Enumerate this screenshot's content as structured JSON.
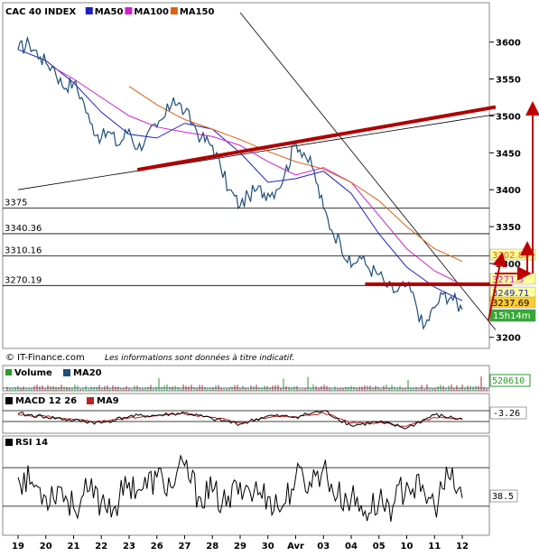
{
  "instrument": "CAC 40 INDEX",
  "credit": "© IT-Finance.com",
  "disclaimer": "Les informations sont données à titre indicatif.",
  "colors": {
    "price": "#1f4e79",
    "ma50": "#2020c8",
    "ma100": "#d020d0",
    "ma150": "#e06010",
    "trend": "#b00000",
    "volume_up": "#2a9a2a",
    "volume_down": "#c02020",
    "ma20": "#1f4e79",
    "macd": "#000000",
    "signal": "#c02020",
    "rsi": "#000000",
    "label_fill": "#ffff99",
    "price_label_fill": "#ffcc33",
    "time_label_fill": "#33aa33"
  },
  "chart_data": [
    {
      "type": "line",
      "title": "CAC 40 INDEX",
      "ylim": [
        3185,
        3635
      ],
      "y_ticks": [
        3600,
        3550,
        3500,
        3450,
        3400,
        3350,
        3300,
        3250,
        3200
      ],
      "x_ticks": [
        "19",
        "20",
        "21",
        "22",
        "23",
        "26",
        "27",
        "28",
        "29",
        "30",
        "Avr",
        "03",
        "04",
        "05",
        "10",
        "11",
        "12"
      ],
      "legend": [
        {
          "name": "CAC 40 INDEX",
          "color": "#000000"
        },
        {
          "name": "MA50",
          "color": "#2020c8"
        },
        {
          "name": "MA100",
          "color": "#d020d0"
        },
        {
          "name": "MA150",
          "color": "#e06010"
        }
      ],
      "horizontal_levels": [
        {
          "label": "3375",
          "value": 3375
        },
        {
          "label": "3340.36",
          "value": 3340.36
        },
        {
          "label": "3310.16",
          "value": 3310.16
        },
        {
          "label": "3270.19",
          "value": 3270.19
        }
      ],
      "price_labels": [
        {
          "label": "3302.88",
          "value": 3302.88,
          "color": "#e06010"
        },
        {
          "label": "3271.3",
          "value": 3271.3,
          "color": "#d020d0"
        },
        {
          "label": "3249.71",
          "value": 3249.71,
          "color": "#2020c8"
        },
        {
          "label": "3237.69",
          "value": 3237.69,
          "color": "#000000"
        }
      ],
      "time_label": "15h14m",
      "series": [
        {
          "name": "CAC 40 INDEX",
          "x": [
            0,
            0.4,
            0.8,
            1.0,
            1.3,
            1.6,
            2.0,
            2.3,
            2.6,
            3.0,
            3.3,
            3.6,
            4.0,
            4.3,
            4.6,
            5.0,
            5.3,
            5.6,
            6.0,
            6.3,
            6.6,
            7.0,
            7.3,
            7.6,
            8.0,
            8.3,
            8.6,
            9.0,
            9.3,
            9.6,
            10.0,
            10.3,
            10.6,
            11.0,
            11.3,
            11.6,
            12.0,
            12.3,
            12.6,
            13.0,
            13.3,
            13.6,
            14.0,
            14.3,
            14.6,
            15.0,
            15.3,
            15.6,
            16.0
          ],
          "values": [
            3590,
            3598,
            3580,
            3572,
            3565,
            3540,
            3545,
            3525,
            3490,
            3470,
            3478,
            3460,
            3482,
            3455,
            3470,
            3485,
            3500,
            3525,
            3505,
            3490,
            3470,
            3460,
            3430,
            3400,
            3378,
            3392,
            3400,
            3395,
            3400,
            3420,
            3465,
            3450,
            3430,
            3375,
            3345,
            3330,
            3295,
            3310,
            3295,
            3285,
            3268,
            3262,
            3270,
            3250,
            3212,
            3240,
            3258,
            3255,
            3237.69
          ]
        },
        {
          "name": "MA50",
          "x": [
            0,
            1.0,
            2.0,
            3.0,
            4.0,
            5.0,
            6.0,
            7.0,
            8.0,
            9.0,
            10.0,
            11.0,
            12.0,
            13.0,
            14.0,
            15.0,
            16.0
          ],
          "values": [
            3590,
            3575,
            3545,
            3505,
            3475,
            3470,
            3490,
            3482,
            3450,
            3410,
            3415,
            3425,
            3395,
            3340,
            3295,
            3268,
            3249.71
          ]
        },
        {
          "name": "MA100",
          "x": [
            1.3,
            2.0,
            3.0,
            4.0,
            5.0,
            6.0,
            7.0,
            8.0,
            9.0,
            10.0,
            11.0,
            12.0,
            13.0,
            14.0,
            15.0,
            16.0
          ],
          "values": [
            3565,
            3550,
            3525,
            3500,
            3485,
            3478,
            3472,
            3460,
            3438,
            3420,
            3430,
            3410,
            3365,
            3320,
            3290,
            3271.3
          ]
        },
        {
          "name": "MA150",
          "x": [
            4.0,
            5.0,
            6.0,
            7.0,
            8.0,
            9.0,
            10.0,
            11.0,
            12.0,
            13.0,
            14.0,
            15.0,
            16.0
          ],
          "values": [
            3540,
            3515,
            3495,
            3482,
            3468,
            3452,
            3438,
            3428,
            3410,
            3385,
            3350,
            3320,
            3302.88
          ]
        }
      ],
      "annotations": [
        {
          "type": "trendline",
          "style": "thin",
          "x": [
            8.0,
            17.2
          ],
          "values": [
            3640,
            3210
          ]
        },
        {
          "type": "trendline",
          "style": "thin",
          "x": [
            0,
            17.2
          ],
          "values": [
            3400,
            3502
          ]
        },
        {
          "type": "trendline",
          "style": "thick",
          "x": [
            4.3,
            17.2
          ],
          "values": [
            3427,
            3512
          ]
        },
        {
          "type": "trendline",
          "style": "thick",
          "x": [
            12.5,
            17.8
          ],
          "values": [
            3272,
            3272
          ]
        }
      ]
    },
    {
      "type": "bar",
      "legend": [
        {
          "name": "Volume",
          "color": "#2a9a2a"
        },
        {
          "name": "MA20",
          "color": "#1f4e79"
        }
      ],
      "last_value_label": "520610"
    },
    {
      "type": "line",
      "legend": [
        {
          "name": "MACD 12 26",
          "color": "#000000"
        },
        {
          "name": "MA9",
          "color": "#c02020"
        }
      ],
      "ylim": [
        -30,
        30
      ],
      "series": [
        {
          "name": "MACD 12 26",
          "x": [
            0,
            1,
            2,
            3,
            4,
            5,
            6,
            7,
            8,
            9,
            10,
            11,
            12,
            13,
            14,
            15,
            16
          ],
          "values": [
            8,
            2,
            -5,
            -10,
            3,
            5,
            10,
            -2,
            -12,
            4,
            2,
            14,
            -15,
            -8,
            -20,
            6,
            -3.26
          ]
        },
        {
          "name": "MA9",
          "x": [
            0,
            1,
            2,
            3,
            4,
            5,
            6,
            7,
            8,
            9,
            10,
            11,
            12,
            13,
            14,
            15,
            16
          ],
          "values": [
            6,
            3,
            -3,
            -7,
            0,
            4,
            8,
            1,
            -9,
            1,
            2,
            10,
            -10,
            -9,
            -16,
            1,
            -1
          ]
        }
      ],
      "last_value_label": "-3.26"
    },
    {
      "type": "line",
      "legend": [
        {
          "name": "RSI 14",
          "color": "#000000"
        }
      ],
      "ylim": [
        0,
        100
      ],
      "levels": [
        70,
        30
      ],
      "series": [
        {
          "name": "RSI 14",
          "x": [
            0,
            0.5,
            1,
            1.5,
            2,
            2.5,
            3,
            3.5,
            4,
            4.5,
            5,
            5.5,
            6,
            6.5,
            7,
            7.5,
            8,
            8.5,
            9,
            9.5,
            10,
            10.5,
            11,
            11.5,
            12,
            12.5,
            13,
            13.5,
            14,
            14.5,
            15,
            15.5,
            16
          ],
          "values": [
            60,
            55,
            40,
            50,
            28,
            45,
            35,
            30,
            55,
            48,
            60,
            50,
            72,
            40,
            45,
            30,
            55,
            45,
            40,
            28,
            60,
            55,
            70,
            40,
            38,
            25,
            35,
            30,
            55,
            45,
            30,
            60,
            38.5
          ]
        }
      ],
      "last_value_label": "38.5"
    }
  ]
}
